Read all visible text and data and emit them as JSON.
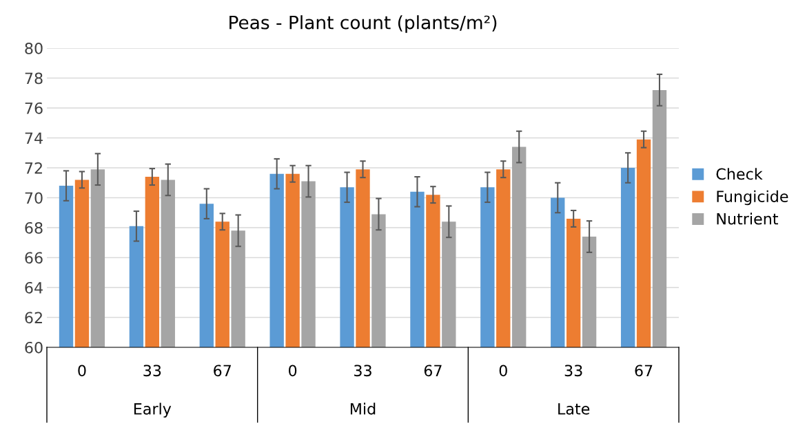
{
  "chart_data": {
    "type": "bar",
    "title": "Peas - Plant count (plants/m²)",
    "categories": [
      "0",
      "33",
      "67",
      "0",
      "33",
      "67",
      "0",
      "33",
      "67"
    ],
    "annotations": [
      "Early",
      "Mid",
      "Late"
    ],
    "series": [
      {
        "name": "Check",
        "color": "#5b9bd5",
        "values": [
          70.8,
          68.1,
          69.6,
          71.6,
          70.7,
          70.4,
          70.7,
          70.0,
          72.0
        ],
        "errors": [
          1.0,
          1.0,
          1.0,
          1.0,
          1.0,
          1.0,
          1.0,
          1.0,
          1.0
        ]
      },
      {
        "name": "Fungicide",
        "color": "#ed7d31",
        "values": [
          71.2,
          71.4,
          68.4,
          71.6,
          71.9,
          70.2,
          71.9,
          68.6,
          73.9
        ],
        "errors": [
          0.55,
          0.55,
          0.55,
          0.55,
          0.55,
          0.55,
          0.55,
          0.55,
          0.55
        ]
      },
      {
        "name": "Nutrient",
        "color": "#a5a5a5",
        "values": [
          71.9,
          71.2,
          67.8,
          71.1,
          68.9,
          68.4,
          73.4,
          67.4,
          77.2
        ],
        "errors": [
          1.05,
          1.05,
          1.05,
          1.05,
          1.05,
          1.05,
          1.05,
          1.05,
          1.05
        ]
      }
    ],
    "ylim": [
      60,
      80
    ],
    "yticks": [
      60,
      62,
      64,
      66,
      68,
      70,
      72,
      74,
      76,
      78,
      80
    ],
    "grid": "y",
    "legend": "right"
  }
}
